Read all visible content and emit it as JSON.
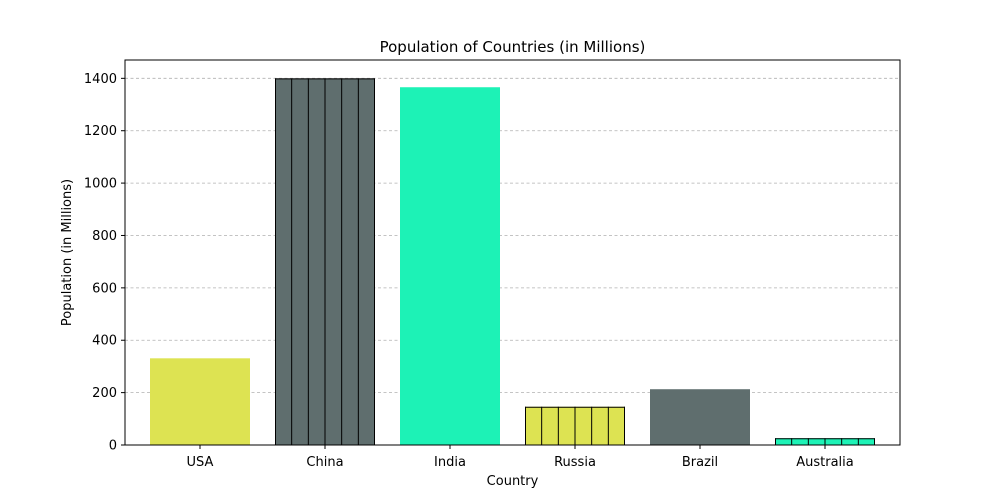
{
  "chart_data": {
    "type": "bar",
    "title": "Population of Countries (in Millions)",
    "xlabel": "Country",
    "ylabel": "Population (in Millions)",
    "categories": [
      "USA",
      "China",
      "India",
      "Russia",
      "Brazil",
      "Australia"
    ],
    "values": [
      331,
      1400,
      1366,
      146,
      213,
      26
    ],
    "colors": [
      "#dde352",
      "#5f6e6e",
      "#1df2b6",
      "#dde352",
      "#5f6e6e",
      "#1df2b6"
    ],
    "hatch": [
      "",
      "|",
      "",
      "|",
      "",
      "|"
    ],
    "ylim": [
      0,
      1470
    ],
    "yticks": [
      0,
      200,
      400,
      600,
      800,
      1000,
      1200,
      1400
    ],
    "grid": "y",
    "legend": "none"
  }
}
